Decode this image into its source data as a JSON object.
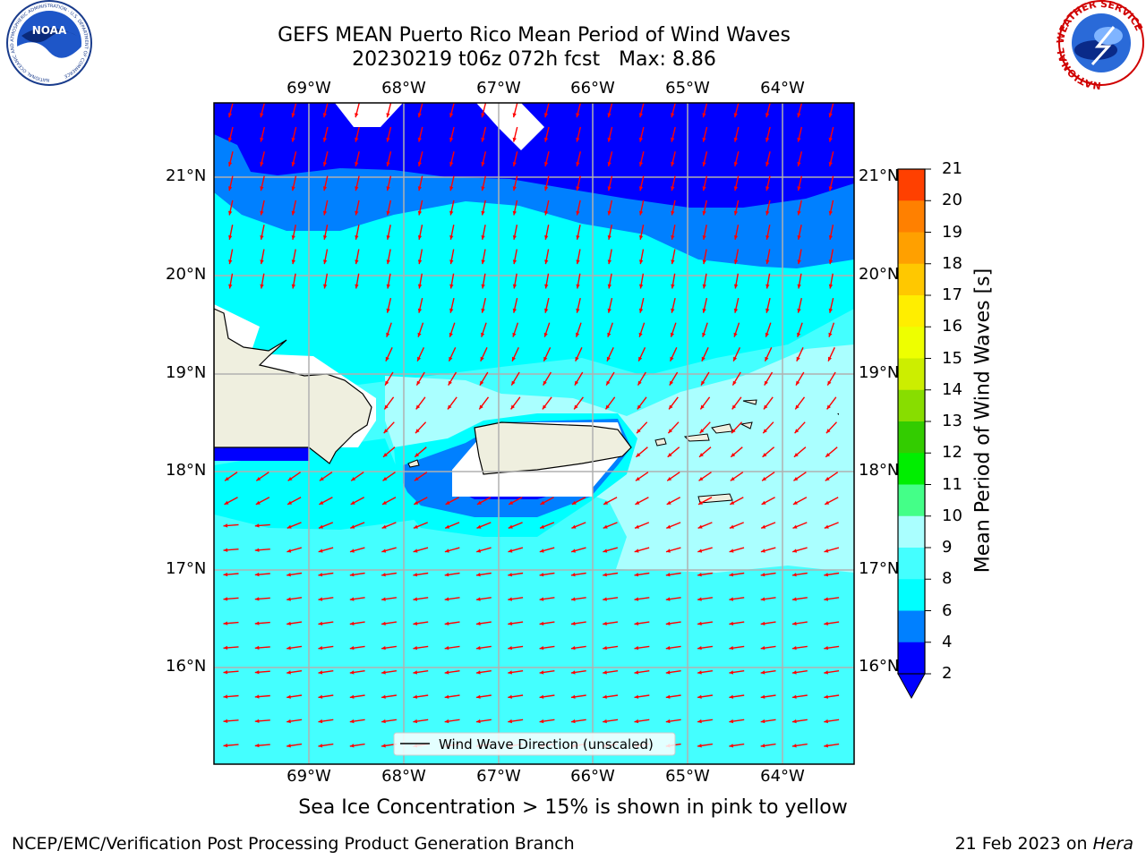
{
  "title": {
    "line1": "GEFS MEAN Puerto Rico Mean Period of Wind Waves",
    "line2": "20230219 t06z 072h fcst   Max: 8.86"
  },
  "logos": {
    "left_org": "NOAA",
    "left_ring_text": "NATIONAL OCEANIC AND ATMOSPHERIC ADMINISTRATION · U.S. DEPARTMENT OF COMMERCE",
    "right_ring_text": "NATIONAL WEATHER SERVICE"
  },
  "map": {
    "lon_labels": [
      "69°W",
      "68°W",
      "67°W",
      "66°W",
      "65°W",
      "64°W"
    ],
    "lat_labels": [
      "21°N",
      "20°N",
      "19°N",
      "18°N",
      "17°N",
      "16°N"
    ],
    "legend_text": "Wind Wave Direction (unscaled)",
    "arrow_color": "#ff0000"
  },
  "colorbar": {
    "label": "Mean Period of Wind Waves [s]",
    "ticks": [
      "2",
      "4",
      "6",
      "8",
      "9",
      "10",
      "11",
      "12",
      "13",
      "14",
      "15",
      "16",
      "17",
      "18",
      "19",
      "20",
      "21"
    ],
    "colors": [
      "#0000ff",
      "#0080ff",
      "#00ffff",
      "#44ffff",
      "#aaffff",
      "#44ff88",
      "#00ee00",
      "#33cc00",
      "#88dd00",
      "#ccee00",
      "#eeff00",
      "#ffee00",
      "#ffc800",
      "#ffa000",
      "#ff8000",
      "#ff4000",
      "#ff0000"
    ],
    "under_color": "#0000ff"
  },
  "palette": {
    "sea_2_4": "#0000ff",
    "sea_4_6": "#0080ff",
    "sea_6_8": "#00ffff",
    "sea_8_9": "#44ffff",
    "sea_9_10": "#aaffff",
    "land": "#efefdf",
    "grid": "#b0b0b0"
  },
  "footer": {
    "note": "Sea Ice Concentration > 15% is shown in pink to yellow",
    "left": "NCEP/EMC/Verification Post Processing Product Generation Branch",
    "right_date": "21 Feb 2023 on ",
    "right_host": "Hera"
  }
}
